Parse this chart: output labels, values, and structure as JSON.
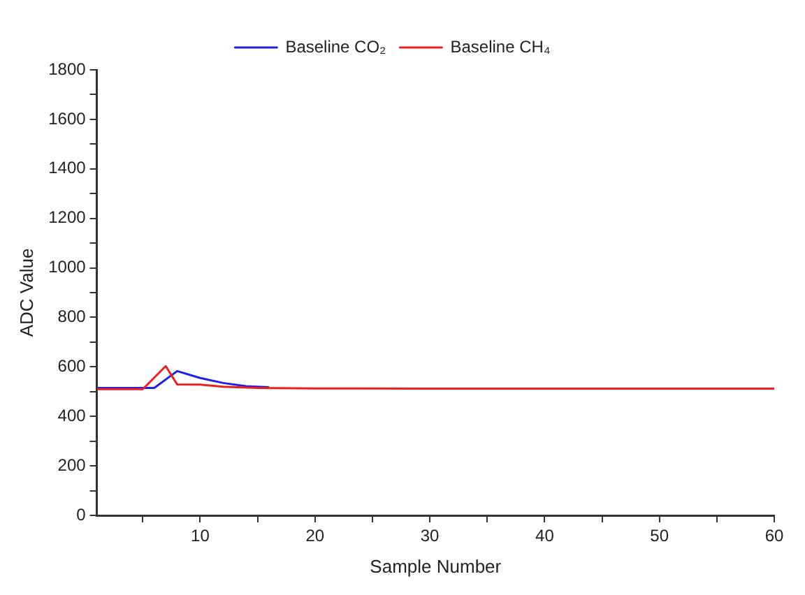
{
  "chart_data": {
    "type": "line",
    "xlabel": "Sample Number",
    "ylabel": "ADC Value",
    "xlim": [
      1,
      60
    ],
    "ylim": [
      0,
      1800
    ],
    "xticks": [
      {
        "value": 5,
        "label": null
      },
      10,
      {
        "value": 15,
        "label": null
      },
      20,
      {
        "value": 25,
        "label": null
      },
      30,
      {
        "value": 35,
        "label": null
      },
      40,
      {
        "value": 45,
        "label": null
      },
      50,
      {
        "value": 55,
        "label": null
      },
      60
    ],
    "yticks": [
      0,
      {
        "value": 100,
        "label": null
      },
      200,
      {
        "value": 300,
        "label": null
      },
      400,
      {
        "value": 500,
        "label": null
      },
      600,
      {
        "value": 700,
        "label": null
      },
      800,
      {
        "value": 900,
        "label": null
      },
      1000,
      {
        "value": 1100,
        "label": null
      },
      1200,
      {
        "value": 1300,
        "label": null
      },
      1400,
      {
        "value": 1500,
        "label": null
      },
      1600,
      {
        "value": 1700,
        "label": null
      },
      1800
    ],
    "grid": false,
    "legend": "top",
    "marker": "none",
    "line_style": "solid",
    "series": [
      {
        "name": "Baseline CO₂",
        "color": "#2020e0",
        "x": [
          1,
          6,
          8,
          10,
          12,
          14,
          16
        ],
        "values": [
          515,
          515,
          583,
          555,
          535,
          522,
          518
        ]
      },
      {
        "name": "Baseline CH₄",
        "color": "#e82020",
        "x": [
          1,
          5,
          7,
          8,
          10,
          12,
          15,
          20,
          30,
          40,
          50,
          60
        ],
        "values": [
          510,
          510,
          603,
          529,
          528,
          520,
          515,
          513,
          512,
          512,
          512,
          512
        ]
      }
    ]
  }
}
